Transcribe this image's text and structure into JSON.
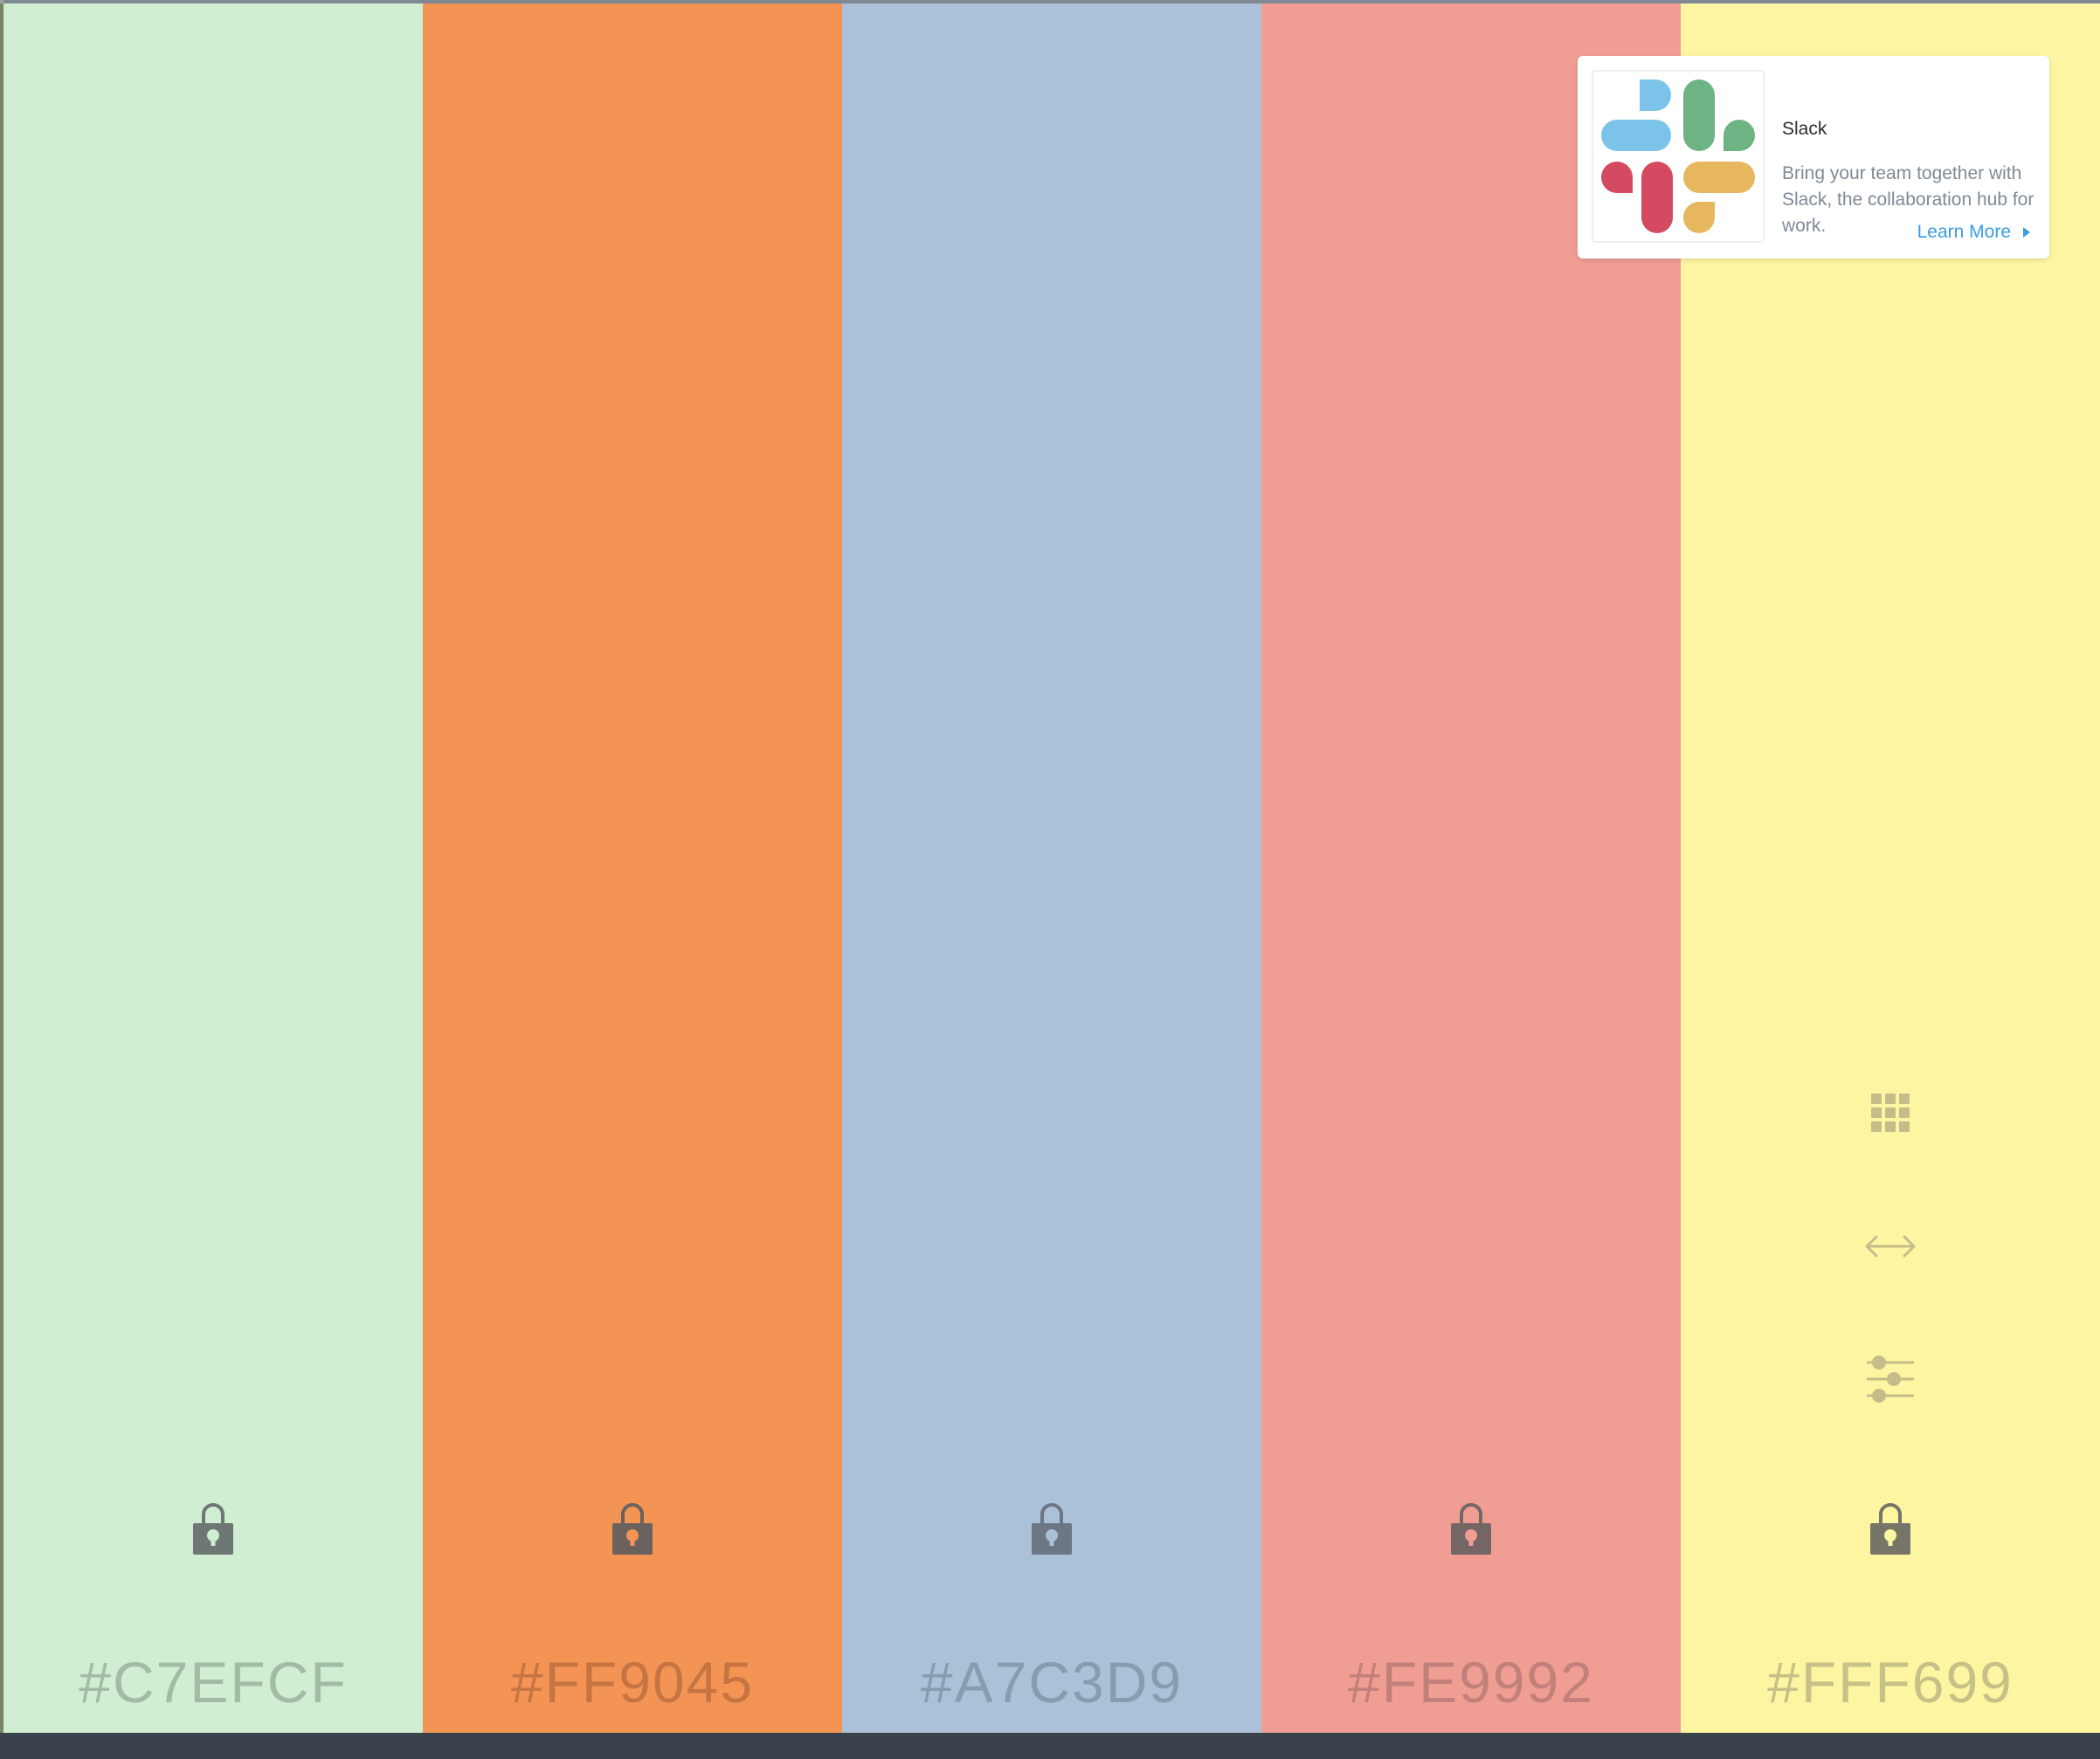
{
  "swatches": [
    {
      "hex": "#C7EFCF",
      "color": "#cfeed2",
      "hex_color": "#9bb3a0",
      "lock_color": "#6f7775",
      "lock_hole": "#cfeed2"
    },
    {
      "hex": "#FF9045",
      "color": "#f39455",
      "hex_color": "#bd6f3f",
      "lock_color": "#6b625e",
      "lock_hole": "#f39455"
    },
    {
      "hex": "#A7C3D9",
      "color": "#abc1d8",
      "hex_color": "#8097a9",
      "lock_color": "#6c7684",
      "lock_hole": "#abc1d8"
    },
    {
      "hex": "#FE9992",
      "color": "#f09e94",
      "hex_color": "#bb7b76",
      "lock_color": "#736664",
      "lock_hole": "#f09e94"
    },
    {
      "hex": "#FFF699",
      "color": "#fef5a2",
      "hex_color": "#bdb882",
      "lock_color": "#767567",
      "lock_hole": "#fef5a2",
      "tool_color": "#c4bd8a"
    }
  ],
  "ad": {
    "title": "Slack",
    "body": "Bring your team together with Slack, the collaboration hub for work.",
    "link": "Learn More",
    "logo_colors": {
      "blue": "#7cc3ea",
      "green": "#6db384",
      "red": "#d44a61",
      "yellow": "#e6b75e"
    }
  },
  "icons": {
    "lock": "lock-icon",
    "apps": "grid-icon",
    "resize": "horizontal-arrows-icon",
    "adjust": "sliders-icon",
    "caret": "caret-right-icon"
  }
}
